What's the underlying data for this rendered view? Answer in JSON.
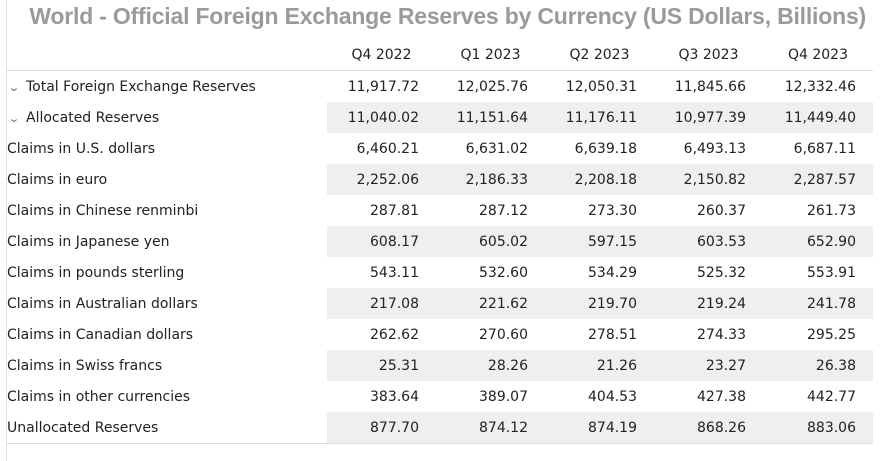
{
  "title": "World - Official Foreign Exchange Reserves by Currency (US Dollars, Billions)",
  "columns": [
    "Q4 2022",
    "Q1 2023",
    "Q2 2023",
    "Q3 2023",
    "Q4 2023"
  ],
  "rows": [
    {
      "label": "Total Foreign Exchange Reserves",
      "values": [
        "11,917.72",
        "12,025.76",
        "12,050.31",
        "11,845.66",
        "12,332.46"
      ]
    },
    {
      "label": "Allocated Reserves",
      "values": [
        "11,040.02",
        "11,151.64",
        "11,176.11",
        "10,977.39",
        "11,449.40"
      ]
    },
    {
      "label": "Claims in U.S. dollars",
      "values": [
        "6,460.21",
        "6,631.02",
        "6,639.18",
        "6,493.13",
        "6,687.11"
      ]
    },
    {
      "label": "Claims in euro",
      "values": [
        "2,252.06",
        "2,186.33",
        "2,208.18",
        "2,150.82",
        "2,287.57"
      ]
    },
    {
      "label": "Claims in Chinese renminbi",
      "values": [
        "287.81",
        "287.12",
        "273.30",
        "260.37",
        "261.73"
      ]
    },
    {
      "label": "Claims in Japanese yen",
      "values": [
        "608.17",
        "605.02",
        "597.15",
        "603.53",
        "652.90"
      ]
    },
    {
      "label": "Claims in pounds sterling",
      "values": [
        "543.11",
        "532.60",
        "534.29",
        "525.32",
        "553.91"
      ]
    },
    {
      "label": "Claims in Australian dollars",
      "values": [
        "217.08",
        "221.62",
        "219.70",
        "219.24",
        "241.78"
      ]
    },
    {
      "label": "Claims in Canadian dollars",
      "values": [
        "262.62",
        "270.60",
        "278.51",
        "274.33",
        "295.25"
      ]
    },
    {
      "label": "Claims in Swiss francs",
      "values": [
        "25.31",
        "28.26",
        "21.26",
        "23.27",
        "26.38"
      ]
    },
    {
      "label": "Claims in other currencies",
      "values": [
        "383.64",
        "389.07",
        "404.53",
        "427.38",
        "442.77"
      ]
    },
    {
      "label": "Unallocated Reserves",
      "values": [
        "877.70",
        "874.12",
        "874.19",
        "868.26",
        "883.06"
      ]
    }
  ],
  "icons": {
    "expand": "chevron-down-icon"
  },
  "colors": {
    "title": "#9a9a9a",
    "row_shade": "#efeff0",
    "rule": "#dcdcdc"
  }
}
